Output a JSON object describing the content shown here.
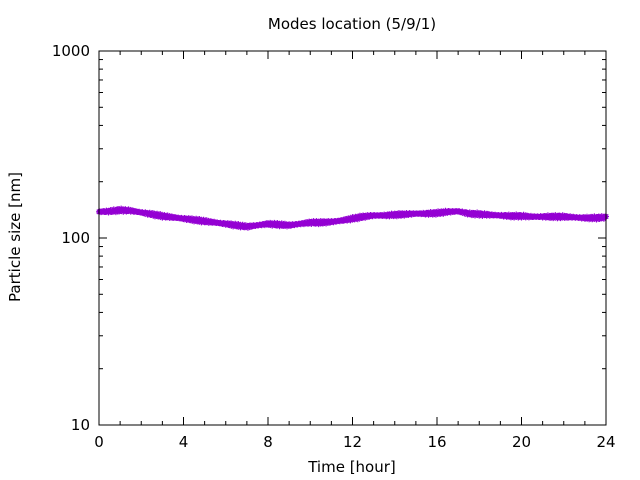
{
  "chart_data": {
    "type": "scatter",
    "title": "Modes location (5/9/1)",
    "xlabel": "Time [hour]",
    "ylabel": "Particle size [nm]",
    "xlim": [
      0,
      24
    ],
    "ylim": [
      10,
      1000
    ],
    "yscale": "log",
    "xticks": [
      0,
      4,
      8,
      12,
      16,
      20,
      24
    ],
    "yticks": [
      {
        "value": 10,
        "label": "10"
      },
      {
        "value": 100,
        "label": "100"
      },
      {
        "value": 1000,
        "label": "1000"
      }
    ],
    "grid": false,
    "marker_color": "#9400d3",
    "series": [
      {
        "x": [
          0,
          0.5,
          1,
          1.5,
          2,
          2.5,
          3,
          3.5,
          4,
          4.5,
          5,
          5.5,
          6,
          6.5,
          7,
          7.5,
          8,
          8.5,
          9,
          9.5,
          10,
          10.5,
          11,
          11.5,
          12,
          12.5,
          13,
          13.5,
          14,
          14.5,
          15,
          15.5,
          16,
          16.5,
          17,
          17.5,
          18,
          18.5,
          19,
          19.5,
          20,
          20.5,
          21,
          21.5,
          22,
          22.5,
          23,
          23.5,
          24
        ],
        "y": [
          138,
          139,
          141,
          140,
          137,
          134,
          131,
          129,
          127,
          125,
          123,
          121,
          119,
          117,
          115,
          117,
          119,
          118,
          117,
          119,
          121,
          121,
          122,
          124,
          127,
          130,
          132,
          132,
          133,
          134,
          135,
          135,
          136,
          138,
          139,
          135,
          134,
          133,
          132,
          131,
          131,
          130,
          130,
          130,
          130,
          129,
          128,
          128,
          129
        ]
      }
    ]
  }
}
